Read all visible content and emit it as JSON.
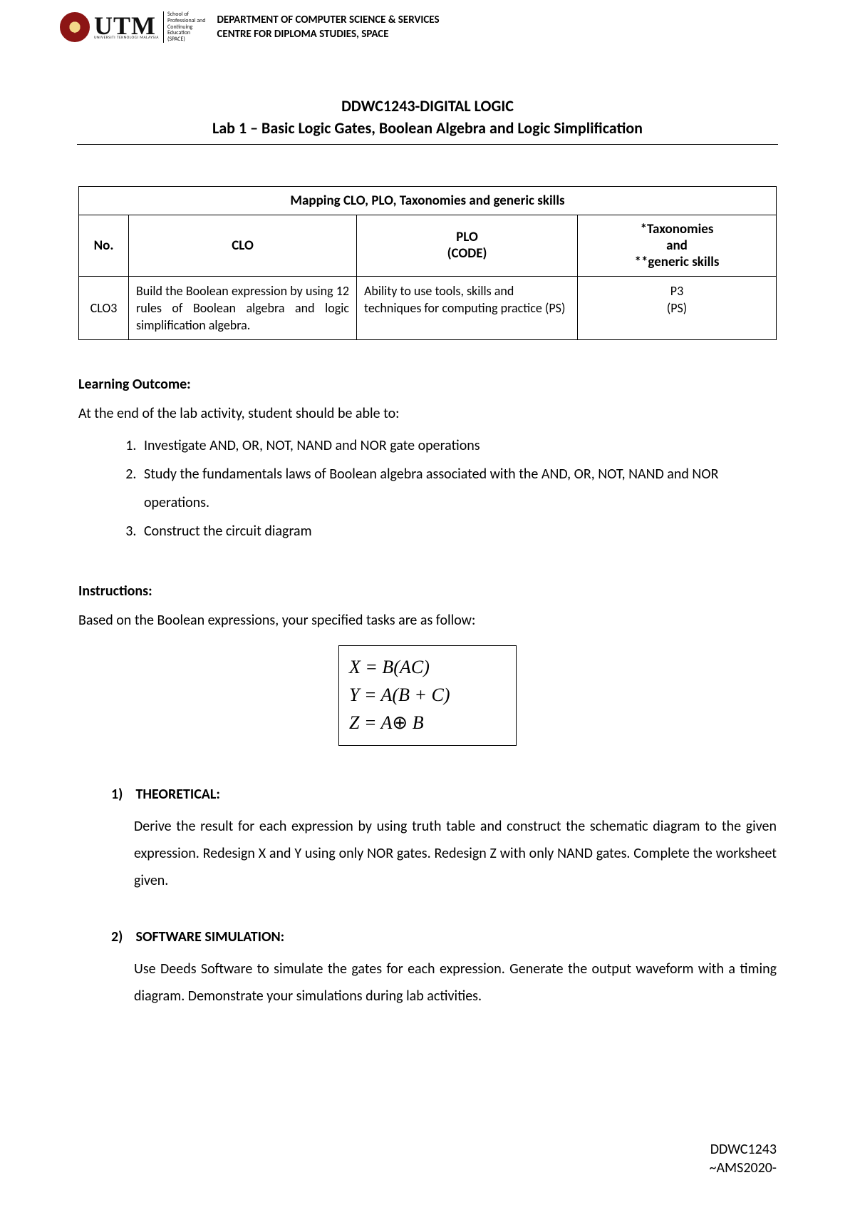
{
  "header": {
    "logo_text": "UTM",
    "logo_sub": "UNIVERSITI TEKNOLOGI MALAYSIA",
    "space_lines": [
      "School of",
      "Professional and",
      "Continuing",
      "Education",
      "(SPACE)"
    ],
    "dept_line1": "DEPARTMENT OF COMPUTER SCIENCE & SERVICES",
    "dept_line2": "CENTRE FOR DIPLOMA STUDIES, SPACE"
  },
  "title": {
    "course": "DDWC1243-DIGITAL LOGIC",
    "lab": "Lab 1 – Basic Logic Gates, Boolean Algebra and Logic Simplification"
  },
  "mapping": {
    "caption": "Mapping CLO, PLO, Taxonomies and generic skills",
    "cols": {
      "no": "No.",
      "clo": "CLO",
      "plo_line1": "PLO",
      "plo_line2": "(CODE)",
      "tax_line1": "*Taxonomies",
      "tax_line2": "and",
      "tax_line3": "**generic skills"
    },
    "row": {
      "no": "CLO3",
      "clo": "Build the Boolean expression by using 12 rules of Boolean algebra and logic simplification algebra.",
      "plo": "Ability to use tools, skills and techniques for computing practice (PS)",
      "tax_line1": "P3",
      "tax_line2": "(PS)"
    }
  },
  "learning": {
    "heading": "Learning Outcome:",
    "intro": "At the end of the lab activity, student should be able to:",
    "items": [
      "Investigate AND, OR, NOT, NAND and NOR gate operations",
      "Study the fundamentals laws of Boolean algebra associated with the AND, OR, NOT, NAND and NOR operations.",
      "Construct the circuit diagram"
    ]
  },
  "instructions": {
    "heading": "Instructions",
    "intro": "Based on the Boolean expressions, your specified tasks are as follow:",
    "equations": {
      "x": "X = B(AC)",
      "y": "Y = A(B + C)",
      "z_left": "Z = A",
      "z_op": "⊕",
      "z_right": " B"
    },
    "tasks": [
      {
        "num": "1)",
        "title": "THEORETICAL:",
        "body": "Derive the result for each expression by using truth table and construct the schematic diagram to the given expression. Redesign X and Y using only NOR gates. Redesign Z with only NAND gates. Complete the worksheet given."
      },
      {
        "num": "2)",
        "title": "SOFTWARE SIMULATION:",
        "body": " Use Deeds Software to simulate the gates for each expression. Generate the output waveform with a timing diagram. Demonstrate your simulations during lab activities."
      }
    ]
  },
  "footer": {
    "line1": "DDWC1243",
    "line2": "~AMS2020-"
  },
  "colors": {
    "seal_primary": "#8c1515",
    "seal_gold": "#f3d88a",
    "text": "#000000",
    "background": "#ffffff",
    "border": "#000000"
  }
}
